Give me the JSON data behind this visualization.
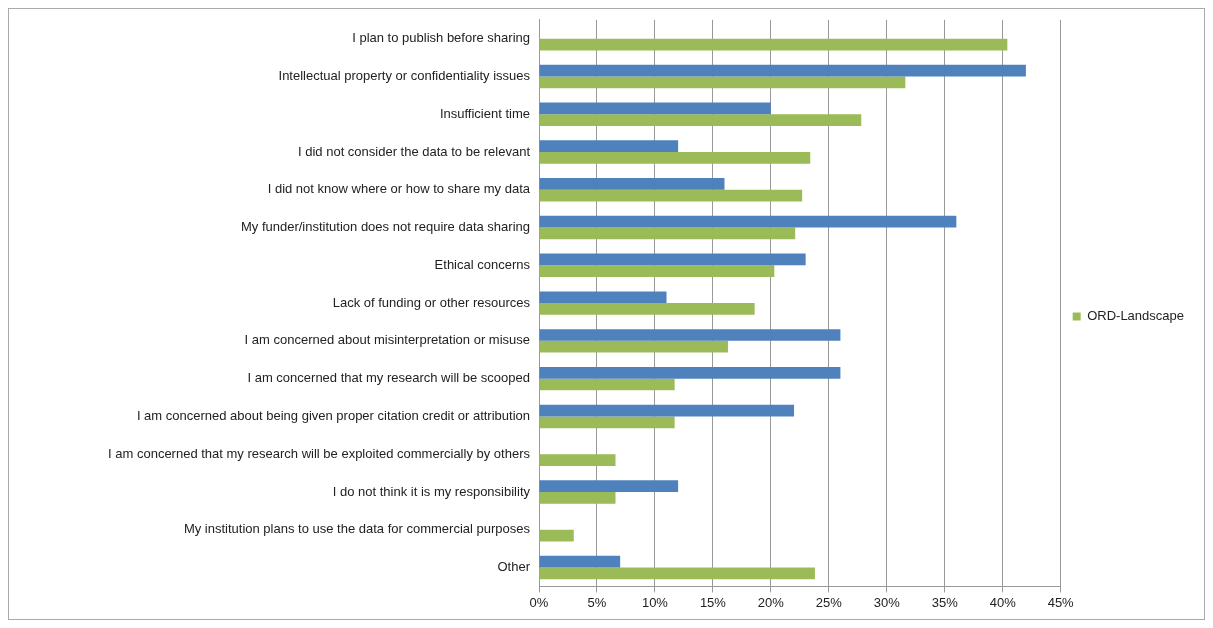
{
  "chart_data": {
    "type": "bar",
    "orientation": "horizontal",
    "categories": [
      "I plan to publish before sharing",
      "Intellectual property or confidentiality issues",
      "Insufficient time",
      "I did not consider the data to be relevant",
      "I did not know where or how to share my data",
      "My funder/institution does not require data sharing",
      "Ethical concerns",
      "Lack of funding or other resources",
      "I am concerned about misinterpretation or misuse",
      "I am concerned that my research will be scooped",
      "I am concerned about being given proper citation credit or attribution",
      "I am concerned that my research will be exploited commercially by others",
      "I do not think it is my responsibility",
      "My institution plans to use the data for commercial purposes",
      "Other"
    ],
    "series": [
      {
        "color": "#4f81bd",
        "values": [
          null,
          42,
          20,
          12,
          16,
          36,
          23,
          11,
          26,
          26,
          22,
          null,
          12,
          null,
          7
        ]
      },
      {
        "name": "ORD-Landscape",
        "color": "#9bbb59",
        "values": [
          40.4,
          31.6,
          27.8,
          23.4,
          22.7,
          22.1,
          20.3,
          18.6,
          16.3,
          11.7,
          11.7,
          6.6,
          6.6,
          3.0,
          23.8
        ]
      }
    ],
    "xlim": [
      0,
      45
    ],
    "xticks": [
      {
        "value": 0,
        "label": "0%"
      },
      {
        "value": 5,
        "label": "5%"
      },
      {
        "value": 10,
        "label": "10%"
      },
      {
        "value": 15,
        "label": "15%"
      },
      {
        "value": 20,
        "label": "20%"
      },
      {
        "value": 25,
        "label": "25%"
      },
      {
        "value": 30,
        "label": "30%"
      },
      {
        "value": 35,
        "label": "35%"
      },
      {
        "value": 40,
        "label": "40%"
      },
      {
        "value": 45,
        "label": "45%"
      }
    ],
    "grid": "x",
    "legend": "right"
  }
}
